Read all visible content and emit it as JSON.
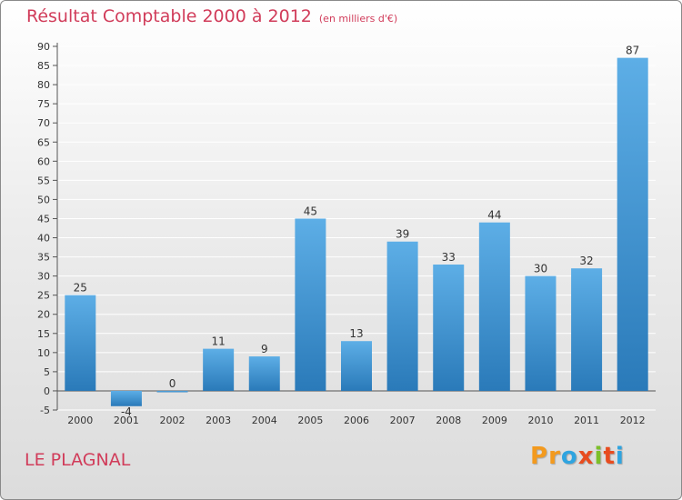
{
  "header": {
    "title": "Résultat Comptable 2000 à 2012",
    "subtitle": "(en milliers d'€)"
  },
  "footer": {
    "commune": "LE PLAGNAL",
    "logo_letters": [
      "P",
      "r",
      "o",
      "x",
      "i",
      "t",
      "i"
    ],
    "logo_colors": [
      "#f39a1e",
      "#f39a1e",
      "#2fa4e0",
      "#e84c1f",
      "#7cbf2a",
      "#e84c1f",
      "#2fa4e0"
    ]
  },
  "colors": {
    "bar_light": "#5daee6",
    "bar_dark": "#2a7ab9",
    "grid": "#ffffff",
    "axis_text": "#333333",
    "accent": "#d13c5a"
  },
  "chart_data": {
    "type": "bar",
    "categories": [
      "2000",
      "2001",
      "2002",
      "2003",
      "2004",
      "2005",
      "2006",
      "2007",
      "2008",
      "2009",
      "2010",
      "2011",
      "2012"
    ],
    "values": [
      25,
      -4,
      0,
      11,
      9,
      45,
      13,
      39,
      33,
      44,
      30,
      32,
      87
    ],
    "data_labels": [
      "25",
      "-4",
      "0",
      "11",
      "9",
      "45",
      "13",
      "39",
      "33",
      "44",
      "30",
      "32",
      "87"
    ],
    "title": "Résultat Comptable 2000 à 2012",
    "xlabel": "",
    "ylabel": "",
    "ylim": [
      -5,
      90
    ],
    "yticks": [
      -5,
      0,
      5,
      10,
      15,
      20,
      25,
      30,
      35,
      40,
      45,
      50,
      55,
      60,
      65,
      70,
      75,
      80,
      85,
      90
    ],
    "grid": true,
    "legend": "none"
  }
}
